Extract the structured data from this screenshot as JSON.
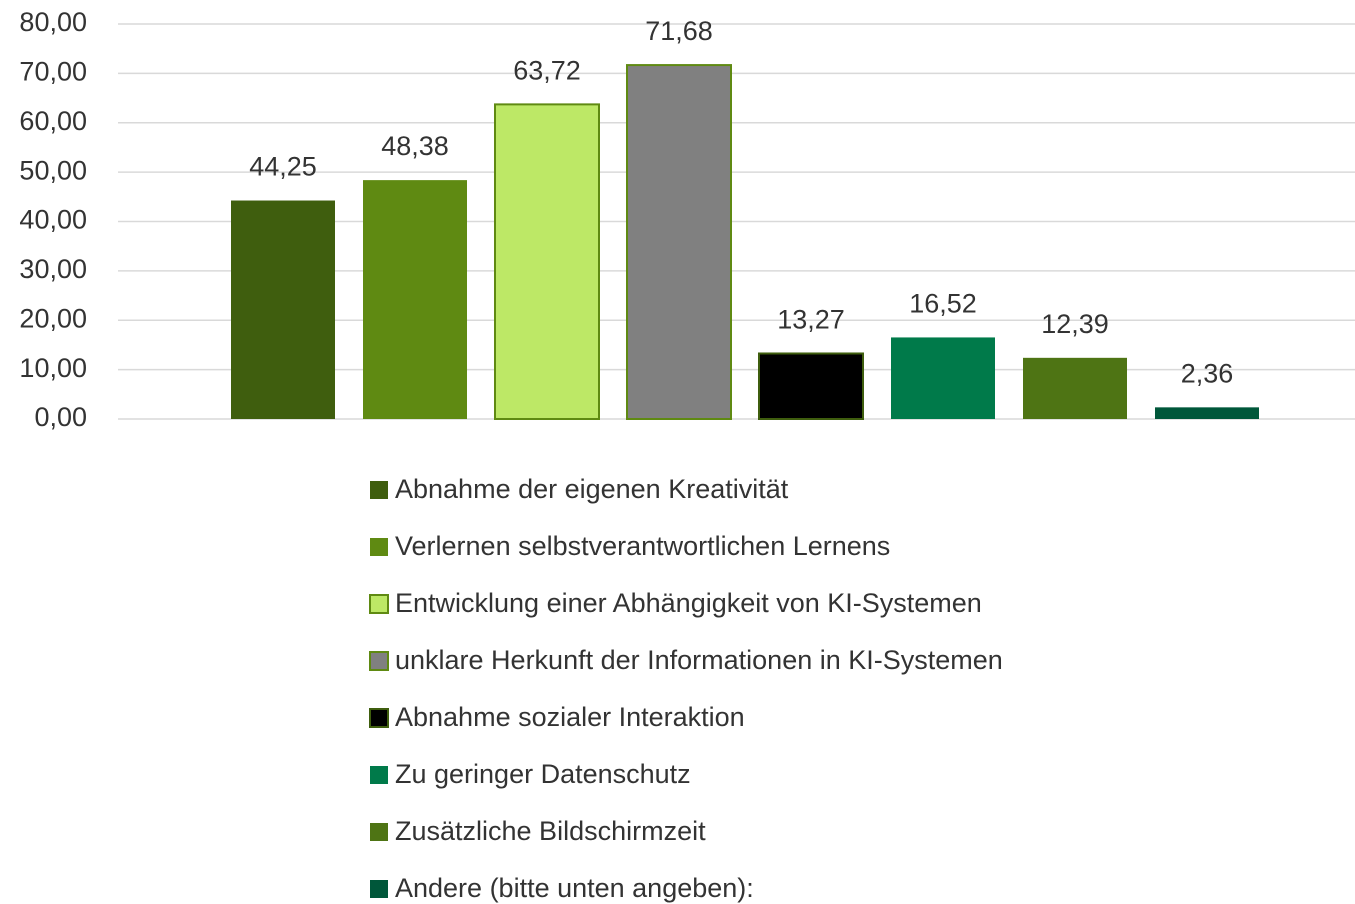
{
  "chart_data": {
    "type": "bar",
    "categories": [
      null
    ],
    "series": [
      {
        "name": "Abnahme der eigenen Kreativität",
        "color": "#3f5e0e",
        "values": [
          44.25
        ],
        "value_labels": [
          "44,25"
        ]
      },
      {
        "name": "Verlernen selbstverantwortlichen Lernens",
        "color": "#5f8a12",
        "values": [
          48.38
        ],
        "value_labels": [
          "48,38"
        ]
      },
      {
        "name": "Entwicklung einer Abhängigkeit von KI-Systemen",
        "color": "#bde866",
        "values": [
          63.72
        ],
        "value_labels": [
          "63,72"
        ]
      },
      {
        "name": "unklare Herkunft der Informationen in KI-Systemen",
        "color": "#808080",
        "values": [
          71.68
        ],
        "value_labels": [
          "71,68"
        ]
      },
      {
        "name": "Abnahme sozialer Interaktion",
        "color": "#000000",
        "values": [
          13.27
        ],
        "value_labels": [
          "13,27"
        ]
      },
      {
        "name": "Zu geringer Datenschutz",
        "color": "#007a4a",
        "values": [
          16.52
        ],
        "value_labels": [
          "16,52"
        ]
      },
      {
        "name": "Zusätzliche Bildschirmzeit",
        "color": "#4e7414",
        "values": [
          12.39
        ],
        "value_labels": [
          "12,39"
        ]
      },
      {
        "name": "Andere (bitte unten angeben):",
        "color": "#00573a",
        "values": [
          2.36
        ],
        "value_labels": [
          "2,36"
        ]
      }
    ],
    "ylim": [
      0,
      80
    ],
    "yticks": [
      {
        "value": 0,
        "label": "0,00"
      },
      {
        "value": 10,
        "label": "10,00"
      },
      {
        "value": 20,
        "label": "20,00"
      },
      {
        "value": 30,
        "label": "30,00"
      },
      {
        "value": 40,
        "label": "40,00"
      },
      {
        "value": 50,
        "label": "50,00"
      },
      {
        "value": 60,
        "label": "60,00"
      },
      {
        "value": 70,
        "label": "70,00"
      },
      {
        "value": 80,
        "label": "80,00"
      }
    ],
    "grid": true,
    "legend": "bottom"
  }
}
